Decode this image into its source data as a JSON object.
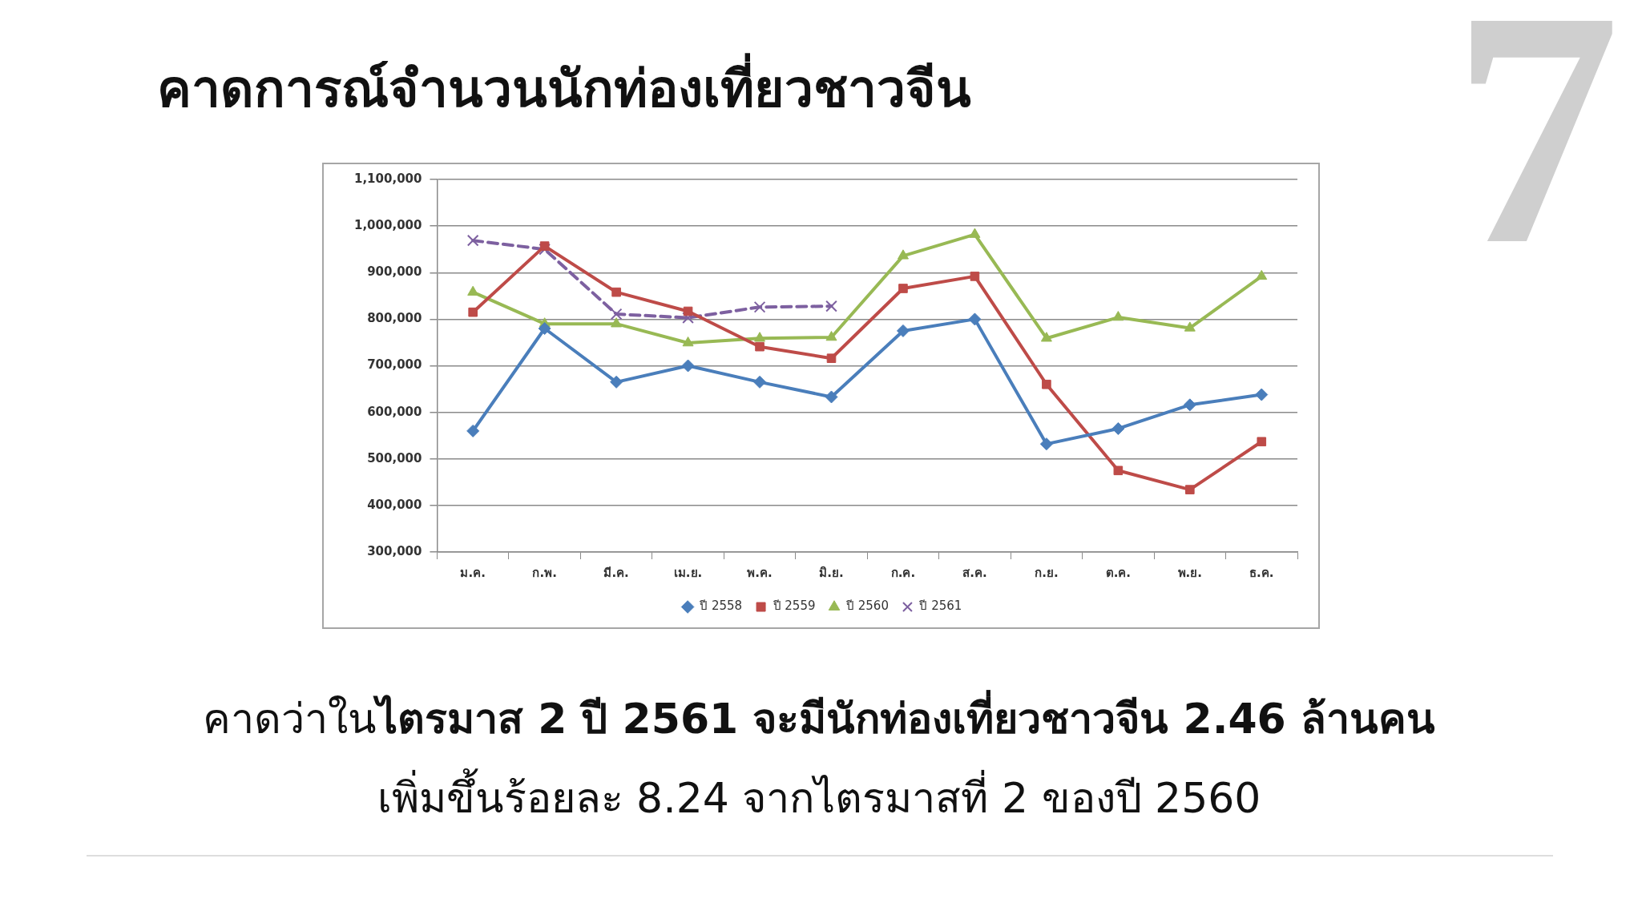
{
  "chart_data": {
    "type": "line",
    "title": "คาดการณ์จำนวนนักท่องเที่ยวชาวจีน",
    "annotations": [
      "คาดว่าใน",
      "ไตรมาส 2 ปี 2561 จะมีนักท่องเที่ยวชาวจีน 2.46 ล้านคน",
      "เพิ่มขึ้นร้อยละ 8.24 จากไตรมาสที่ 2 ของปี 2560",
      "7"
    ],
    "categories": [
      "ม.ค.",
      "ก.พ.",
      "มี.ค.",
      "เม.ย.",
      "พ.ค.",
      "มิ.ย.",
      "ก.ค.",
      "ส.ค.",
      "ก.ย.",
      "ต.ค.",
      "พ.ย.",
      "ธ.ค."
    ],
    "series": [
      {
        "name": "ปี 2558",
        "color": "#4a7ebb",
        "marker": "diamond",
        "line_style": "solid",
        "values": [
          560000,
          780000,
          665000,
          700000,
          665000,
          633000,
          775000,
          800000,
          532000,
          565000,
          616000,
          638000
        ]
      },
      {
        "name": "ปี 2559",
        "color": "#be4b48",
        "marker": "square",
        "line_style": "solid",
        "values": [
          815000,
          957000,
          858000,
          817000,
          741000,
          716000,
          866000,
          892000,
          660000,
          475000,
          434000,
          537000
        ]
      },
      {
        "name": "ปี 2560",
        "color": "#98b954",
        "marker": "triangle",
        "line_style": "solid",
        "values": [
          858000,
          790000,
          790000,
          749000,
          759000,
          761000,
          936000,
          982000,
          759000,
          804000,
          781000,
          892000
        ]
      },
      {
        "name": "ปี 2561",
        "color": "#7d60a0",
        "marker": "cross",
        "line_style": "dashed",
        "values": [
          969000,
          950000,
          811000,
          803000,
          826000,
          828000,
          null,
          null,
          null,
          null,
          null,
          null
        ]
      }
    ],
    "ylim": [
      300000,
      1100000
    ],
    "yticks": [
      {
        "value": 300000,
        "label": "300,000"
      },
      {
        "value": 400000,
        "label": "400,000"
      },
      {
        "value": 500000,
        "label": "500,000"
      },
      {
        "value": 600000,
        "label": "600,000"
      },
      {
        "value": 700000,
        "label": "700,000"
      },
      {
        "value": 800000,
        "label": "800,000"
      },
      {
        "value": 900000,
        "label": "900,000"
      },
      {
        "value": 1000000,
        "label": "1,000,000"
      },
      {
        "value": 1100000,
        "label": "1,100,000"
      }
    ],
    "grid": "y",
    "legend": "bottom"
  }
}
